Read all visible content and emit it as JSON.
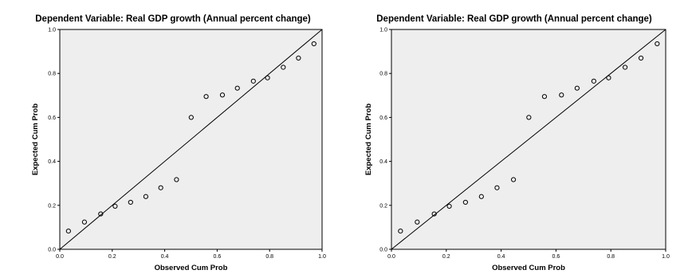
{
  "chart_data": [
    {
      "type": "scatter",
      "title": "Dependent Variable: Real GDP growth (Annual percent change)",
      "xlabel": "Observed Cum Prob",
      "ylabel": "Expected Cum Prob",
      "xlim": [
        0.0,
        1.0
      ],
      "ylim": [
        0.0,
        1.0
      ],
      "xticks": [
        "0.0",
        "0.2",
        "0.4",
        "0.6",
        "0.8",
        "1.0"
      ],
      "yticks": [
        "0.0",
        "0.2",
        "0.4",
        "0.6",
        "0.8",
        "1.0"
      ],
      "grid": false,
      "reference_line": [
        [
          0,
          0
        ],
        [
          1,
          1
        ]
      ],
      "points": [
        {
          "x": 0.033,
          "y": 0.083
        },
        {
          "x": 0.094,
          "y": 0.124
        },
        {
          "x": 0.156,
          "y": 0.161
        },
        {
          "x": 0.211,
          "y": 0.196
        },
        {
          "x": 0.27,
          "y": 0.214
        },
        {
          "x": 0.328,
          "y": 0.24
        },
        {
          "x": 0.385,
          "y": 0.28
        },
        {
          "x": 0.445,
          "y": 0.317
        },
        {
          "x": 0.501,
          "y": 0.6
        },
        {
          "x": 0.558,
          "y": 0.695
        },
        {
          "x": 0.62,
          "y": 0.702
        },
        {
          "x": 0.677,
          "y": 0.733
        },
        {
          "x": 0.738,
          "y": 0.765
        },
        {
          "x": 0.792,
          "y": 0.78
        },
        {
          "x": 0.852,
          "y": 0.828
        },
        {
          "x": 0.91,
          "y": 0.87
        },
        {
          "x": 0.969,
          "y": 0.935
        }
      ],
      "colors": {
        "plot_bg": "#eeeeee",
        "marker": "#000000",
        "line": "#000000"
      }
    },
    {
      "type": "scatter",
      "title": "Dependent Variable: Real GDP growth (Annual percent change)",
      "xlabel": "Observed Cum Prob",
      "ylabel": "Expected Cum Prob",
      "xlim": [
        0.0,
        1.0
      ],
      "ylim": [
        0.0,
        1.0
      ],
      "xticks": [
        "0.0",
        "0.2",
        "0.4",
        "0.6",
        "0.8",
        "1.0"
      ],
      "yticks": [
        "0.0",
        "0.2",
        "0.4",
        "0.6",
        "0.8",
        "1.0"
      ],
      "grid": false,
      "reference_line": [
        [
          0,
          0
        ],
        [
          1,
          1
        ]
      ],
      "points": [
        {
          "x": 0.033,
          "y": 0.083
        },
        {
          "x": 0.094,
          "y": 0.124
        },
        {
          "x": 0.156,
          "y": 0.161
        },
        {
          "x": 0.211,
          "y": 0.196
        },
        {
          "x": 0.27,
          "y": 0.214
        },
        {
          "x": 0.328,
          "y": 0.24
        },
        {
          "x": 0.385,
          "y": 0.28
        },
        {
          "x": 0.445,
          "y": 0.317
        },
        {
          "x": 0.501,
          "y": 0.6
        },
        {
          "x": 0.558,
          "y": 0.695
        },
        {
          "x": 0.62,
          "y": 0.702
        },
        {
          "x": 0.677,
          "y": 0.733
        },
        {
          "x": 0.738,
          "y": 0.765
        },
        {
          "x": 0.792,
          "y": 0.78
        },
        {
          "x": 0.852,
          "y": 0.828
        },
        {
          "x": 0.91,
          "y": 0.87
        },
        {
          "x": 0.969,
          "y": 0.935
        }
      ],
      "colors": {
        "plot_bg": "#eeeeee",
        "marker": "#000000",
        "line": "#000000"
      }
    }
  ]
}
